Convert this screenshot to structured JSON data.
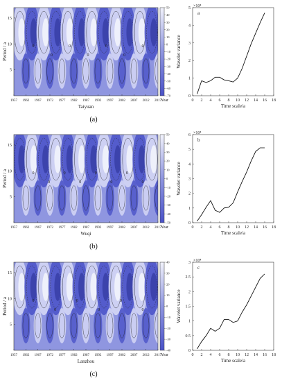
{
  "rows": [
    {
      "letter": "(a)",
      "station": "Taiyuan",
      "contour": {
        "ylabel": "Period / a",
        "xlabel_right": "Year",
        "x_ticks": [
          "1957",
          "1962",
          "1967",
          "1972",
          "1977",
          "1982",
          "1987",
          "1992",
          "1997",
          "2002",
          "2007",
          "2012",
          "2017"
        ],
        "y_ticks": [
          "5",
          "10",
          "15"
        ],
        "colorbar_ticks": [
          "-70",
          "-60",
          "-50",
          "-40",
          "-30",
          "-20",
          "-10",
          "0",
          "10",
          "20",
          "30",
          "40",
          "50"
        ],
        "contour_labels": [
          "0",
          "0",
          "0",
          "0",
          "0",
          "0",
          "0"
        ]
      },
      "variance": {
        "panel_label": "a",
        "exponent_label": "×10⁴",
        "ylabel": "Wavelet variance",
        "xlabel": "Time scale/a",
        "xlim": [
          0,
          18
        ],
        "ylim": [
          0,
          5
        ],
        "x_ticks": [
          "0",
          "2",
          "4",
          "6",
          "8",
          "10",
          "12",
          "14",
          "16",
          "18"
        ],
        "y_ticks": [
          "0",
          "1",
          "2",
          "3",
          "4",
          "5"
        ],
        "x": [
          1,
          2,
          3,
          4,
          5,
          6,
          7,
          8,
          9,
          10,
          11,
          12,
          13,
          14,
          15,
          16
        ],
        "y": [
          0.1,
          0.85,
          0.75,
          0.85,
          1.05,
          1.05,
          0.9,
          0.85,
          0.78,
          1.0,
          1.55,
          2.25,
          2.95,
          3.55,
          4.15,
          4.7
        ]
      }
    },
    {
      "letter": "(b)",
      "station": "Wuqi",
      "contour": {
        "ylabel": "Period / a",
        "xlabel_right": "Year",
        "x_ticks": [
          "1957",
          "1962",
          "1967",
          "1972",
          "1977",
          "1982",
          "1987",
          "1992",
          "1997",
          "2002",
          "2007",
          "2012",
          "2017"
        ],
        "y_ticks": [
          "5",
          "10",
          "15"
        ],
        "colorbar_ticks": [
          "-50",
          "-40",
          "-30",
          "-20",
          "-10",
          "0",
          "10",
          "20",
          "30",
          "40",
          "50"
        ],
        "contour_labels": [
          "0",
          "0",
          "0",
          "0",
          "0",
          "0",
          "0",
          "0"
        ]
      },
      "variance": {
        "panel_label": "b",
        "exponent_label": "×10⁴",
        "ylabel": "Wavelet variance",
        "xlabel": "Time scale/a",
        "xlim": [
          0,
          18
        ],
        "ylim": [
          0,
          6
        ],
        "x_ticks": [
          "0",
          "2",
          "4",
          "6",
          "8",
          "10",
          "12",
          "14",
          "16",
          "18"
        ],
        "y_ticks": [
          "0",
          "1",
          "2",
          "3",
          "4",
          "5",
          "6"
        ],
        "x": [
          1,
          2,
          3,
          4,
          5,
          6,
          7,
          8,
          9,
          10,
          11,
          12,
          13,
          14,
          15,
          16
        ],
        "y": [
          0.1,
          0.55,
          1.05,
          1.5,
          0.85,
          0.7,
          1.0,
          1.05,
          1.35,
          2.1,
          2.8,
          3.45,
          4.2,
          4.85,
          5.1,
          5.1
        ]
      }
    },
    {
      "letter": "(c)",
      "station": "Lanzhou",
      "contour": {
        "ylabel": "Period / a",
        "xlabel_right": "Year",
        "x_ticks": [
          "1957",
          "1962",
          "1967",
          "1972",
          "1977",
          "1982",
          "1987",
          "1992",
          "1997",
          "2002",
          "2007",
          "2012",
          "2017"
        ],
        "y_ticks": [
          "5",
          "10",
          "15"
        ],
        "colorbar_ticks": [
          "-40",
          "-30",
          "-20",
          "-10",
          "0",
          "10",
          "20",
          "30",
          "40"
        ],
        "contour_labels": [
          "0",
          "0",
          "0",
          "0",
          "0",
          "0"
        ]
      },
      "variance": {
        "panel_label": "c",
        "exponent_label": "×10⁴",
        "ylabel": "Wavelet variance",
        "xlabel": "Time scale/a",
        "xlim": [
          0,
          18
        ],
        "ylim": [
          0,
          3
        ],
        "x_ticks": [
          "0",
          "2",
          "4",
          "6",
          "8",
          "10",
          "12",
          "14",
          "16",
          "18"
        ],
        "y_ticks": [
          "0",
          "0.5",
          "1",
          "1.5",
          "2",
          "2.5",
          "3"
        ],
        "x": [
          1,
          2,
          3,
          4,
          5,
          6,
          7,
          8,
          9,
          10,
          11,
          12,
          13,
          14,
          15,
          16
        ],
        "y": [
          0.05,
          0.3,
          0.5,
          0.75,
          0.65,
          0.75,
          1.05,
          1.05,
          0.95,
          1.0,
          1.3,
          1.55,
          1.85,
          2.15,
          2.45,
          2.6
        ]
      }
    }
  ],
  "colors": {
    "deep": "#4a52c8",
    "mid": "#8f96e0",
    "light": "#d8dbf6",
    "pale": "#f2f3fc",
    "line": "#111111"
  }
}
